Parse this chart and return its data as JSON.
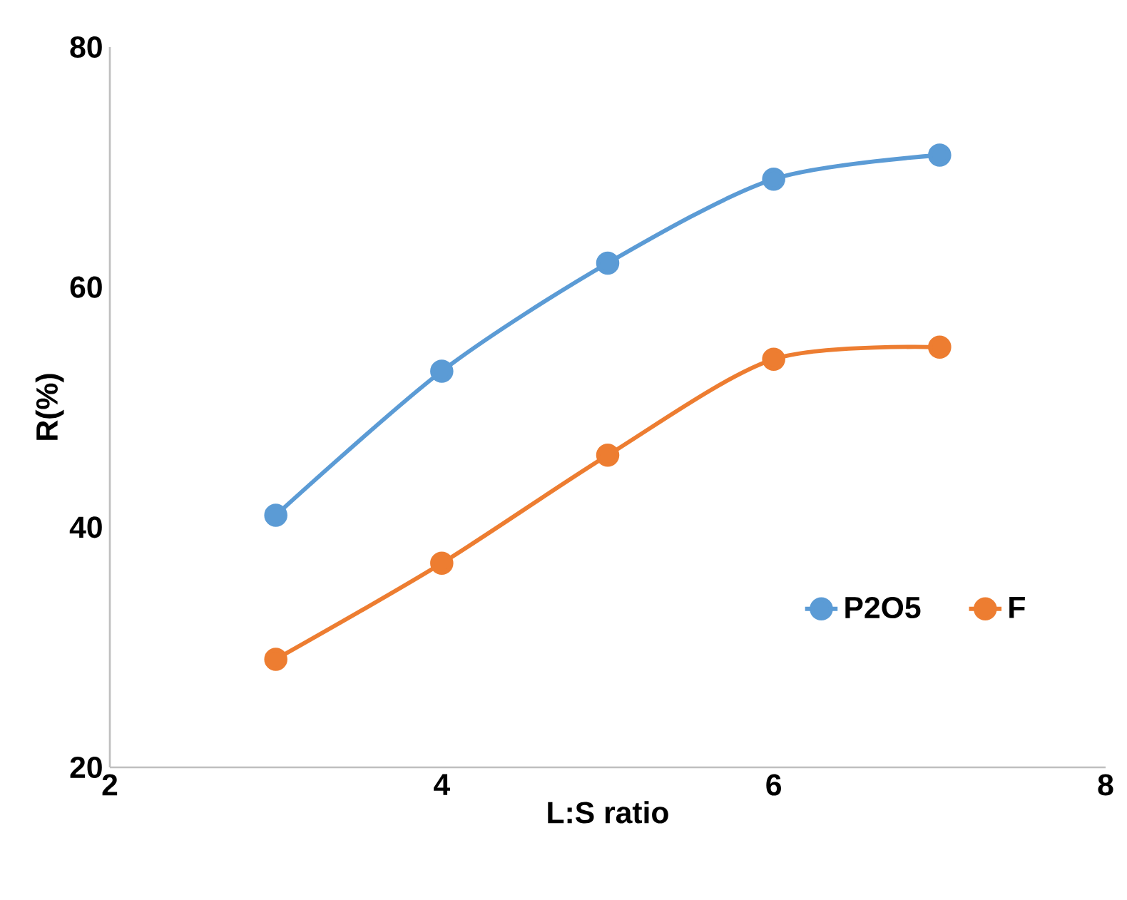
{
  "chart_data": {
    "type": "line",
    "xlabel": "L:S ratio",
    "ylabel": "R(%)",
    "x": [
      3,
      4,
      5,
      6,
      7
    ],
    "series": [
      {
        "name": "P2O5",
        "color": "#5b9bd5",
        "values": [
          41,
          53,
          62,
          69,
          71
        ]
      },
      {
        "name": "F",
        "color": "#ed7d31",
        "values": [
          29,
          37,
          46,
          54,
          55
        ]
      }
    ],
    "xlim": [
      2,
      8
    ],
    "xticks": [
      2,
      4,
      6,
      8
    ],
    "ylim": [
      20,
      80
    ],
    "yticks": [
      20,
      40,
      60,
      80
    ],
    "grid": false,
    "legend": "right",
    "marker": "circle",
    "line_style": "solid"
  }
}
